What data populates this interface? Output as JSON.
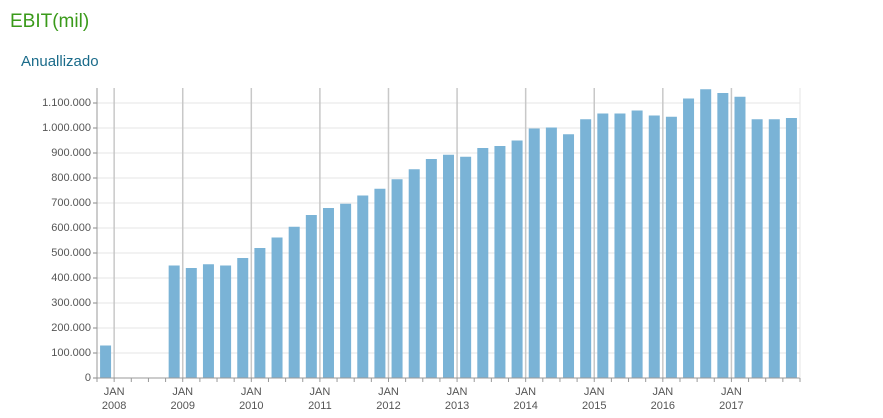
{
  "chart_data": {
    "type": "bar",
    "title": "EBIT(mil)",
    "subtitle": "Anuallizado",
    "color": "#7ab3d6",
    "values": [
      130000,
      null,
      null,
      null,
      450000,
      440000,
      455000,
      450000,
      480000,
      520000,
      562000,
      605000,
      652000,
      680000,
      697000,
      730000,
      757000,
      795000,
      835000,
      876000,
      893000,
      885000,
      920000,
      928000,
      950000,
      998000,
      1002000,
      975000,
      1035000,
      1058000,
      1058000,
      1070000,
      1050000,
      1045000,
      1118000,
      1155000,
      1140000,
      1125000,
      1035000,
      1035000,
      1040000
    ],
    "ylim": [
      0,
      1160000
    ],
    "yticks": [
      0,
      {
        "value": 100000,
        "label": "100.000"
      },
      {
        "value": 200000,
        "label": "200.000"
      },
      {
        "value": 300000,
        "label": "300.000"
      },
      {
        "value": 400000,
        "label": "400.000"
      },
      {
        "value": 500000,
        "label": "500.000"
      },
      {
        "value": 600000,
        "label": "600.000"
      },
      {
        "value": 700000,
        "label": "700.000"
      },
      {
        "value": 800000,
        "label": "800.000"
      },
      {
        "value": 900000,
        "label": "900.000"
      },
      {
        "value": 1000000,
        "label": "1.000.000"
      },
      {
        "value": 1100000,
        "label": "1.100.000"
      }
    ],
    "xticks": [
      {
        "month": "JAN",
        "year": "2008"
      },
      {
        "month": "JAN",
        "year": "2009"
      },
      {
        "month": "JAN",
        "year": "2010"
      },
      {
        "month": "JAN",
        "year": "2011"
      },
      {
        "month": "JAN",
        "year": "2012"
      },
      {
        "month": "JAN",
        "year": "2013"
      },
      {
        "month": "JAN",
        "year": "2014"
      },
      {
        "month": "JAN",
        "year": "2015"
      },
      {
        "month": "JAN",
        "year": "2016"
      },
      {
        "month": "JAN",
        "year": "2017"
      }
    ],
    "grid": true
  }
}
